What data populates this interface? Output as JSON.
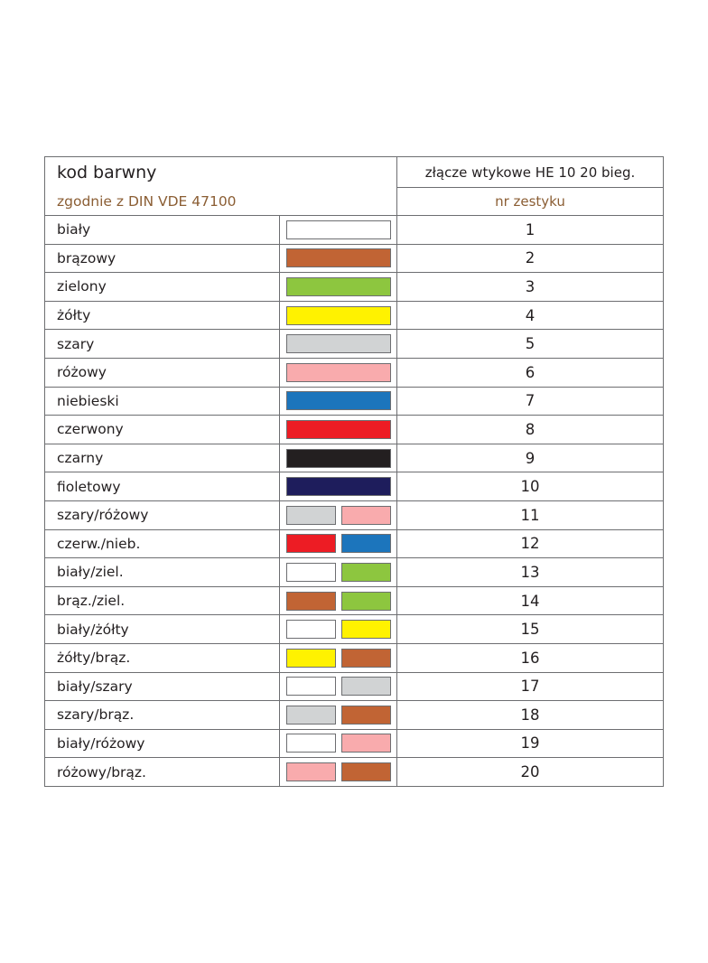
{
  "header": {
    "title": "kod barwny",
    "subtitle": "zgodnie z DIN VDE 47100",
    "connector_label": "złącze wtykowe HE 10   20 bieg.",
    "set_number_label": "nr zestyku"
  },
  "rows": [
    {
      "name": "biały",
      "number": "1",
      "colors": [
        "#ffffff"
      ]
    },
    {
      "name": "brązowy",
      "number": "2",
      "colors": [
        "#c16434"
      ]
    },
    {
      "name": "zielony",
      "number": "3",
      "colors": [
        "#8dc63f"
      ]
    },
    {
      "name": "żółty",
      "number": "4",
      "colors": [
        "#fff200"
      ]
    },
    {
      "name": "szary",
      "number": "5",
      "colors": [
        "#d1d3d4"
      ]
    },
    {
      "name": "różowy",
      "number": "6",
      "colors": [
        "#f9abad"
      ]
    },
    {
      "name": "niebieski",
      "number": "7",
      "colors": [
        "#1c75bc"
      ]
    },
    {
      "name": "czerwony",
      "number": "8",
      "colors": [
        "#ed1c24"
      ]
    },
    {
      "name": "czarny",
      "number": "9",
      "colors": [
        "#231f20"
      ]
    },
    {
      "name": "fioletowy",
      "number": "10",
      "colors": [
        "#1e1d5c"
      ]
    },
    {
      "name": "szary/różowy",
      "number": "11",
      "colors": [
        "#d1d3d4",
        "#f9abad"
      ]
    },
    {
      "name": "czerw./nieb.",
      "number": "12",
      "colors": [
        "#ed1c24",
        "#1c75bc"
      ]
    },
    {
      "name": "biały/ziel.",
      "number": "13",
      "colors": [
        "#ffffff",
        "#8dc63f"
      ]
    },
    {
      "name": "brąz./ziel.",
      "number": "14",
      "colors": [
        "#c16434",
        "#8dc63f"
      ]
    },
    {
      "name": "biały/żółty",
      "number": "15",
      "colors": [
        "#ffffff",
        "#fff200"
      ]
    },
    {
      "name": "żółty/brąz.",
      "number": "16",
      "colors": [
        "#fff200",
        "#c16434"
      ]
    },
    {
      "name": "biały/szary",
      "number": "17",
      "colors": [
        "#ffffff",
        "#d1d3d4"
      ]
    },
    {
      "name": "szary/brąz.",
      "number": "18",
      "colors": [
        "#d1d3d4",
        "#c16434"
      ]
    },
    {
      "name": "biały/różowy",
      "number": "19",
      "colors": [
        "#ffffff",
        "#f9abad"
      ]
    },
    {
      "name": "różowy/brąz.",
      "number": "20",
      "colors": [
        "#f9abad",
        "#c16434"
      ]
    }
  ]
}
